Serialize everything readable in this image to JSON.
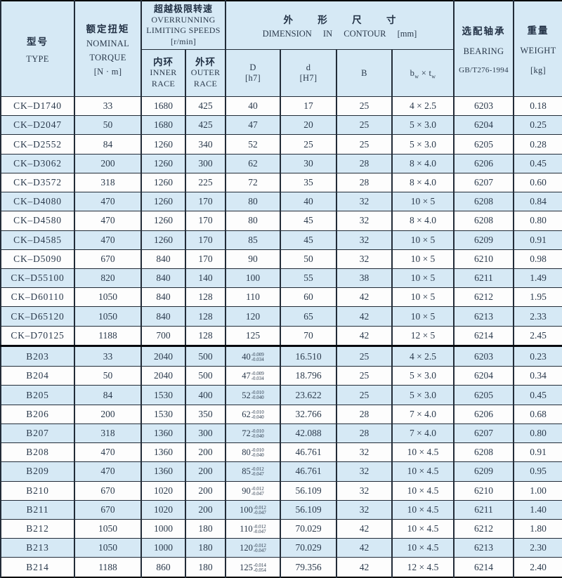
{
  "colors": {
    "band_blue": "#d6e9f5",
    "grid_line": "#222c38",
    "section_divider": "#05090e",
    "text": "#2b3a4c",
    "page_bg": "#ffffff"
  },
  "table": {
    "header": {
      "type_cn": "型号",
      "type_en": "TYPE",
      "torque_cn": "额定扭矩",
      "torque_l1": "NOMINAL",
      "torque_l2": "TORQUE",
      "torque_unit": "[N · m]",
      "speed_cn": "超越极限转速",
      "speed_l1": "OVERRUNNING",
      "speed_l2": "LIMITING SPEEDS",
      "speed_unit": "[r/min]",
      "inner_cn": "内环",
      "inner_l1": "INNER",
      "inner_l2": "RACE",
      "outer_cn": "外环",
      "outer_l1": "OUTER",
      "outer_l2": "RACE",
      "dim_cn": "外 形 尺 寸",
      "dim_en": "DIMENSION IN CONTOUR",
      "dim_unit": "[mm]",
      "D_l1": "D",
      "D_l2": "[h7]",
      "d_l1": "d",
      "d_l2": "[H7]",
      "B": "B",
      "bt_b": "b",
      "bt_bsub": "w",
      "bt_times": "×",
      "bt_t": "t",
      "bt_tsub": "w",
      "bearing_cn": "选配轴承",
      "bearing_en": "BEARING",
      "bearing_std": "GB/T276-1994",
      "weight_cn": "重量",
      "weight_en": "WEIGHT",
      "weight_unit": "[kg]"
    },
    "rows": [
      {
        "type": "CK–D1740",
        "torque": "33",
        "inner": "1680",
        "outer": "425",
        "D": "40",
        "d": "17",
        "B": "25",
        "bt": "4 × 2.5",
        "bearing": "6203",
        "weight": "0.18",
        "shade": false
      },
      {
        "type": "CK–D2047",
        "torque": "50",
        "inner": "1680",
        "outer": "425",
        "D": "47",
        "d": "20",
        "B": "25",
        "bt": "5 × 3.0",
        "bearing": "6204",
        "weight": "0.25",
        "shade": true
      },
      {
        "type": "CK–D2552",
        "torque": "84",
        "inner": "1260",
        "outer": "340",
        "D": "52",
        "d": "25",
        "B": "25",
        "bt": "5 × 3.0",
        "bearing": "6205",
        "weight": "0.28",
        "shade": false
      },
      {
        "type": "CK–D3062",
        "torque": "200",
        "inner": "1260",
        "outer": "300",
        "D": "62",
        "d": "30",
        "B": "28",
        "bt": "8 × 4.0",
        "bearing": "6206",
        "weight": "0.45",
        "shade": true
      },
      {
        "type": "CK–D3572",
        "torque": "318",
        "inner": "1260",
        "outer": "225",
        "D": "72",
        "d": "35",
        "B": "28",
        "bt": "8 × 4.0",
        "bearing": "6207",
        "weight": "0.60",
        "shade": false
      },
      {
        "type": "CK–D4080",
        "torque": "470",
        "inner": "1260",
        "outer": "170",
        "D": "80",
        "d": "40",
        "B": "32",
        "bt": "10 × 5",
        "bearing": "6208",
        "weight": "0.84",
        "shade": true
      },
      {
        "type": "CK–D4580",
        "torque": "470",
        "inner": "1260",
        "outer": "170",
        "D": "80",
        "d": "45",
        "B": "32",
        "bt": "8 × 4.0",
        "bearing": "6208",
        "weight": "0.80",
        "shade": false
      },
      {
        "type": "CK–D4585",
        "torque": "470",
        "inner": "1260",
        "outer": "170",
        "D": "85",
        "d": "45",
        "B": "32",
        "bt": "10 × 5",
        "bearing": "6209",
        "weight": "0.91",
        "shade": true
      },
      {
        "type": "CK–D5090",
        "torque": "670",
        "inner": "840",
        "outer": "170",
        "D": "90",
        "d": "50",
        "B": "32",
        "bt": "10 × 5",
        "bearing": "6210",
        "weight": "0.98",
        "shade": false
      },
      {
        "type": "CK–D55100",
        "torque": "820",
        "inner": "840",
        "outer": "140",
        "D": "100",
        "d": "55",
        "B": "38",
        "bt": "10 × 5",
        "bearing": "6211",
        "weight": "1.49",
        "shade": true
      },
      {
        "type": "CK–D60110",
        "torque": "1050",
        "inner": "840",
        "outer": "128",
        "D": "110",
        "d": "60",
        "B": "42",
        "bt": "10 × 5",
        "bearing": "6212",
        "weight": "1.95",
        "shade": false
      },
      {
        "type": "CK–D65120",
        "torque": "1050",
        "inner": "840",
        "outer": "128",
        "D": "120",
        "d": "65",
        "B": "42",
        "bt": "10 × 5",
        "bearing": "6213",
        "weight": "2.33",
        "shade": true
      },
      {
        "type": "CK–D70125",
        "torque": "1188",
        "inner": "700",
        "outer": "128",
        "D": "125",
        "d": "70",
        "B": "42",
        "bt": "12 × 5",
        "bearing": "6214",
        "weight": "2.45",
        "shade": false
      },
      {
        "type": "B203",
        "torque": "33",
        "inner": "2040",
        "outer": "500",
        "D": "40",
        "D_tol": {
          "hi": "-0.009",
          "lo": "-0.034"
        },
        "d": "16.510",
        "B": "25",
        "bt": "4 × 2.5",
        "bearing": "6203",
        "weight": "0.23",
        "shade": true,
        "section_start": true
      },
      {
        "type": "B204",
        "torque": "50",
        "inner": "2040",
        "outer": "500",
        "D": "47",
        "D_tol": {
          "hi": "-0.009",
          "lo": "-0.034"
        },
        "d": "18.796",
        "B": "25",
        "bt": "5 × 3.0",
        "bearing": "6204",
        "weight": "0.34",
        "shade": false
      },
      {
        "type": "B205",
        "torque": "84",
        "inner": "1530",
        "outer": "400",
        "D": "52",
        "D_tol": {
          "hi": "-0.010",
          "lo": "-0.040"
        },
        "d": "23.622",
        "B": "25",
        "bt": "5 × 3.0",
        "bearing": "6205",
        "weight": "0.45",
        "shade": true
      },
      {
        "type": "B206",
        "torque": "200",
        "inner": "1530",
        "outer": "350",
        "D": "62",
        "D_tol": {
          "hi": "-0.010",
          "lo": "-0.040"
        },
        "d": "32.766",
        "B": "28",
        "bt": "7 × 4.0",
        "bearing": "6206",
        "weight": "0.68",
        "shade": false
      },
      {
        "type": "B207",
        "torque": "318",
        "inner": "1360",
        "outer": "300",
        "D": "72",
        "D_tol": {
          "hi": "-0.010",
          "lo": "-0.040"
        },
        "d": "42.088",
        "B": "28",
        "bt": "7 × 4.0",
        "bearing": "6207",
        "weight": "0.80",
        "shade": true
      },
      {
        "type": "B208",
        "torque": "470",
        "inner": "1360",
        "outer": "200",
        "D": "80",
        "D_tol": {
          "hi": "-0.010",
          "lo": "-0.040"
        },
        "d": "46.761",
        "B": "32",
        "bt": "10 × 4.5",
        "bearing": "6208",
        "weight": "0.91",
        "shade": false
      },
      {
        "type": "B209",
        "torque": "470",
        "inner": "1360",
        "outer": "200",
        "D": "85",
        "D_tol": {
          "hi": "-0.012",
          "lo": "-0.047"
        },
        "d": "46.761",
        "B": "32",
        "bt": "10 × 4.5",
        "bearing": "6209",
        "weight": "0.95",
        "shade": true
      },
      {
        "type": "B210",
        "torque": "670",
        "inner": "1020",
        "outer": "200",
        "D": "90",
        "D_tol": {
          "hi": "-0.012",
          "lo": "-0.047"
        },
        "d": "56.109",
        "B": "32",
        "bt": "10 × 4.5",
        "bearing": "6210",
        "weight": "1.00",
        "shade": false
      },
      {
        "type": "B211",
        "torque": "670",
        "inner": "1020",
        "outer": "200",
        "D": "100",
        "D_tol": {
          "hi": "-0.012",
          "lo": "-0.047"
        },
        "d": "56.109",
        "B": "32",
        "bt": "10 × 4.5",
        "bearing": "6211",
        "weight": "1.40",
        "shade": true
      },
      {
        "type": "B212",
        "torque": "1050",
        "inner": "1000",
        "outer": "180",
        "D": "110",
        "D_tol": {
          "hi": "-0.012",
          "lo": "-0.047"
        },
        "d": "70.029",
        "B": "42",
        "bt": "10 × 4.5",
        "bearing": "6212",
        "weight": "1.80",
        "shade": false
      },
      {
        "type": "B213",
        "torque": "1050",
        "inner": "1000",
        "outer": "180",
        "D": "120",
        "D_tol": {
          "hi": "-0.012",
          "lo": "-0.047"
        },
        "d": "70.029",
        "B": "42",
        "bt": "10 × 4.5",
        "bearing": "6213",
        "weight": "2.30",
        "shade": true
      },
      {
        "type": "B214",
        "torque": "1188",
        "inner": "860",
        "outer": "180",
        "D": "125",
        "D_tol": {
          "hi": "-0.014",
          "lo": "-0.054"
        },
        "d": "79.356",
        "B": "42",
        "bt": "12 × 4.5",
        "bearing": "6214",
        "weight": "2.40",
        "shade": false
      }
    ]
  }
}
